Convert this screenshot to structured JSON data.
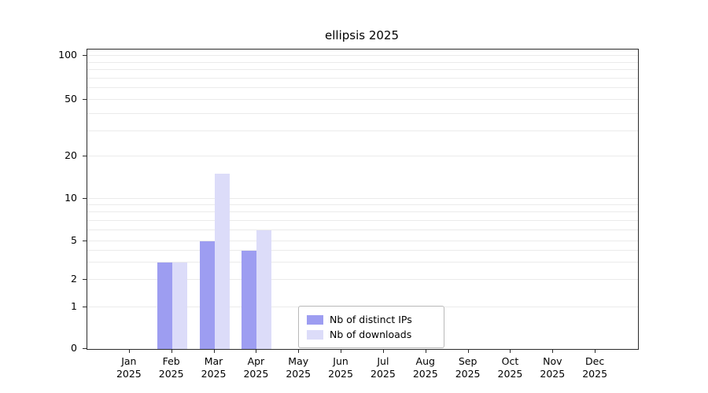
{
  "chart_data": {
    "type": "bar",
    "title": "ellipsis 2025",
    "categories": [
      {
        "month": "Jan",
        "year": "2025"
      },
      {
        "month": "Feb",
        "year": "2025"
      },
      {
        "month": "Mar",
        "year": "2025"
      },
      {
        "month": "Apr",
        "year": "2025"
      },
      {
        "month": "May",
        "year": "2025"
      },
      {
        "month": "Jun",
        "year": "2025"
      },
      {
        "month": "Jul",
        "year": "2025"
      },
      {
        "month": "Aug",
        "year": "2025"
      },
      {
        "month": "Sep",
        "year": "2025"
      },
      {
        "month": "Oct",
        "year": "2025"
      },
      {
        "month": "Nov",
        "year": "2025"
      },
      {
        "month": "Dec",
        "year": "2025"
      }
    ],
    "series": [
      {
        "name": "Nb of distinct IPs",
        "color": "#9d9df1",
        "values": [
          0,
          3,
          5,
          4,
          0,
          0,
          0,
          0,
          0,
          0,
          0,
          0
        ]
      },
      {
        "name": "Nb of downloads",
        "color": "#dcdcf9",
        "values": [
          0,
          3,
          15,
          6,
          0,
          0,
          0,
          0,
          0,
          0,
          0,
          0
        ]
      }
    ],
    "y_axis": {
      "scale": "symlog",
      "ticks": [
        0,
        1,
        2,
        5,
        10,
        20,
        50,
        100
      ],
      "range": [
        0,
        110
      ]
    },
    "grid": {
      "visible": true,
      "orientation": "horizontal",
      "line_values": [
        1,
        2,
        3,
        4,
        5,
        6,
        7,
        8,
        9,
        10,
        20,
        30,
        40,
        50,
        60,
        70,
        80,
        90,
        100
      ],
      "color": "#ebebeb"
    },
    "legend": {
      "position": "lower-center"
    },
    "xlabel": "",
    "ylabel": ""
  }
}
